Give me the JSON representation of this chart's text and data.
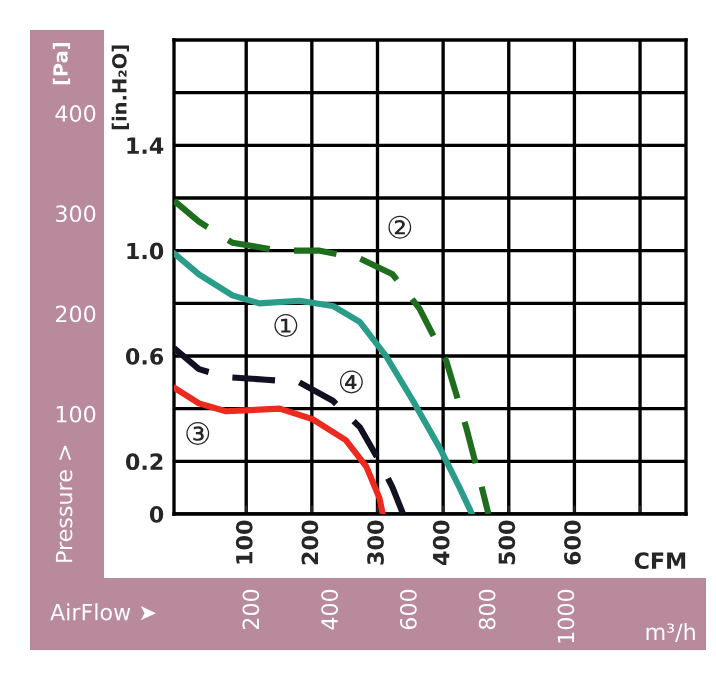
{
  "chart_data": {
    "type": "line",
    "xlabel": "CFM",
    "ylabel": "[in.H₂O]",
    "y2label": "[Pa]",
    "x2label": "m³/h",
    "xlim": [
      -10,
      770
    ],
    "xticks": [
      100,
      200,
      300,
      400,
      500,
      600,
      {
        "value": 700,
        "label": null
      }
    ],
    "ylim": [
      0,
      1.8
    ],
    "yticks": [
      0,
      0.2,
      {
        "value": 0.4,
        "label": null
      },
      0.6,
      {
        "value": 0.8,
        "label": null
      },
      {
        "value": 1.0,
        "label": "1.0"
      },
      {
        "value": 1.2,
        "label": null
      },
      1.4,
      {
        "value": 1.6,
        "label": null
      }
    ],
    "y2lim": [
      0,
      473
    ],
    "y2ticks": [
      100,
      200,
      300,
      400
    ],
    "x2lim": [
      0,
      1300
    ],
    "x2ticks": [
      200,
      400,
      600,
      800,
      1000
    ],
    "grid": true,
    "legend": false,
    "marker": "none",
    "series": [
      {
        "color": "#2a9d8a",
        "line_style": "solid",
        "x": [
          -10,
          28,
          79,
          120,
          181,
          232,
          273,
          313,
          354,
          395,
          425,
          444
        ],
        "values": [
          0.99,
          0.91,
          0.83,
          0.8,
          0.81,
          0.79,
          0.73,
          0.6,
          0.43,
          0.25,
          0.1,
          0
        ]
      },
      {
        "color": "#1e6e1e",
        "line_style": "dashed",
        "x": [
          -10,
          28,
          79,
          151,
          212,
          273,
          323,
          364,
          405,
          435,
          456,
          469
        ],
        "values": [
          1.19,
          1.11,
          1.03,
          1.0,
          1.0,
          0.97,
          0.91,
          0.78,
          0.58,
          0.33,
          0.13,
          0
        ]
      },
      {
        "color": "#ee2a1e",
        "line_style": "solid",
        "x": [
          -10,
          28,
          69,
          151,
          201,
          252,
          283,
          303,
          308
        ],
        "values": [
          0.48,
          0.42,
          0.39,
          0.4,
          0.36,
          0.28,
          0.18,
          0.06,
          0
        ]
      },
      {
        "color": "#111122",
        "line_style": "dashed",
        "x": [
          -10,
          28,
          69,
          130,
          181,
          232,
          273,
          303,
          323,
          339
        ],
        "values": [
          0.63,
          0.55,
          0.52,
          0.51,
          0.5,
          0.43,
          0.33,
          0.2,
          0.1,
          0
        ]
      }
    ],
    "annotations": [
      {
        "text": "①",
        "x": 135,
        "y": 0.79
      },
      {
        "text": "②",
        "x": 334,
        "y": 0.91
      },
      {
        "text": "③",
        "x": 77,
        "y": 0.38
      },
      {
        "text": "④",
        "x": 201,
        "y": 0.47
      },
      "Pressure >",
      "AirFlow ➤"
    ]
  }
}
